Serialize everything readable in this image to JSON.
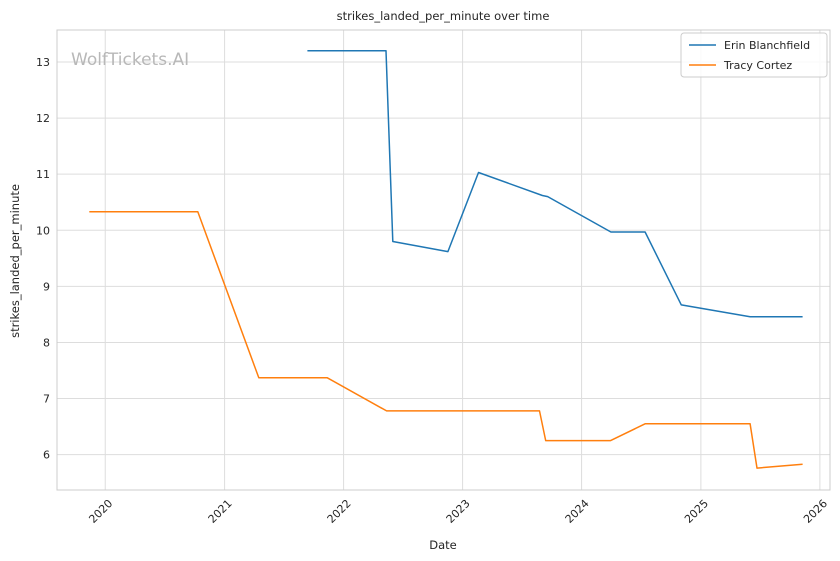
{
  "chart_data": {
    "type": "line",
    "title": "strikes_landed_per_minute over time",
    "xlabel": "Date",
    "ylabel": "strikes_landed_per_minute",
    "watermark": "WolfTickets.AI",
    "xlim": [
      "2019-08-06",
      "2026-02-01"
    ],
    "ylim": [
      5.37,
      13.57
    ],
    "x_ticks": [
      {
        "label": "2020",
        "date": "2020-01-01"
      },
      {
        "label": "2021",
        "date": "2021-01-01"
      },
      {
        "label": "2022",
        "date": "2022-01-01"
      },
      {
        "label": "2023",
        "date": "2023-01-01"
      },
      {
        "label": "2024",
        "date": "2024-01-01"
      },
      {
        "label": "2025",
        "date": "2025-01-01"
      },
      {
        "label": "2026",
        "date": "2026-01-01"
      }
    ],
    "y_ticks": [
      6,
      7,
      8,
      9,
      10,
      11,
      12,
      13
    ],
    "grid": true,
    "legend_position": "top-right",
    "series": [
      {
        "name": "Erin Blanchfield",
        "color": "#1f77b4",
        "points": [
          {
            "x": "2021-09-12",
            "y": 13.2
          },
          {
            "x": "2022-05-11",
            "y": 13.2
          },
          {
            "x": "2022-06-01",
            "y": 9.8
          },
          {
            "x": "2022-11-17",
            "y": 9.62
          },
          {
            "x": "2023-02-19",
            "y": 11.03
          },
          {
            "x": "2023-09-03",
            "y": 10.62
          },
          {
            "x": "2023-09-19",
            "y": 10.6
          },
          {
            "x": "2024-03-31",
            "y": 9.97
          },
          {
            "x": "2024-07-14",
            "y": 9.97
          },
          {
            "x": "2024-11-02",
            "y": 8.67
          },
          {
            "x": "2025-06-01",
            "y": 8.46
          },
          {
            "x": "2025-11-09",
            "y": 8.46
          }
        ]
      },
      {
        "name": "Tracy Cortez",
        "color": "#ff7f0e",
        "points": [
          {
            "x": "2019-11-13",
            "y": 10.33
          },
          {
            "x": "2020-10-11",
            "y": 10.33
          },
          {
            "x": "2021-04-16",
            "y": 7.37
          },
          {
            "x": "2021-11-12",
            "y": 7.37
          },
          {
            "x": "2022-05-13",
            "y": 6.78
          },
          {
            "x": "2023-08-25",
            "y": 6.78
          },
          {
            "x": "2023-09-13",
            "y": 6.25
          },
          {
            "x": "2024-03-30",
            "y": 6.25
          },
          {
            "x": "2024-07-14",
            "y": 6.55
          },
          {
            "x": "2025-06-01",
            "y": 6.55
          },
          {
            "x": "2025-06-22",
            "y": 5.76
          },
          {
            "x": "2025-11-09",
            "y": 5.83
          }
        ]
      }
    ]
  }
}
